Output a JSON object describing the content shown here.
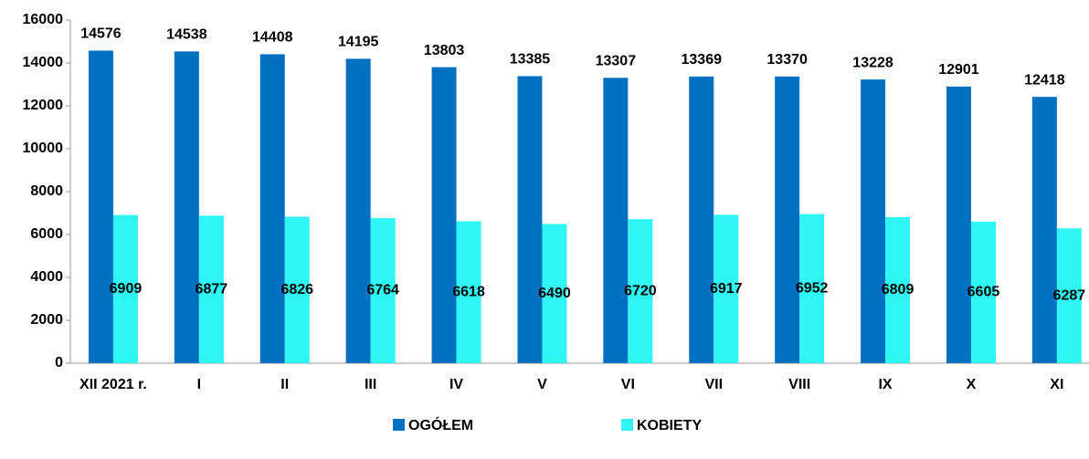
{
  "chart_data": {
    "type": "bar",
    "categories": [
      "XII 2021 r.",
      "I",
      "II",
      "III",
      "IV",
      "V",
      "VI",
      "VII",
      "VIII",
      "IX",
      "X",
      "XI"
    ],
    "series": [
      {
        "name": "OGÓŁEM",
        "color": "#0070c0",
        "values": [
          14576,
          14538,
          14408,
          14195,
          13803,
          13385,
          13307,
          13369,
          13370,
          13228,
          12901,
          12418
        ]
      },
      {
        "name": "KOBIETY",
        "color": "#2ff5f5",
        "values": [
          6909,
          6877,
          6826,
          6764,
          6618,
          6490,
          6720,
          6917,
          6952,
          6809,
          6605,
          6287
        ]
      }
    ],
    "ylim": [
      0,
      16000
    ],
    "yticks": [
      0,
      2000,
      4000,
      6000,
      8000,
      10000,
      12000,
      14000,
      16000
    ],
    "grid": false,
    "legend": "bottom"
  }
}
